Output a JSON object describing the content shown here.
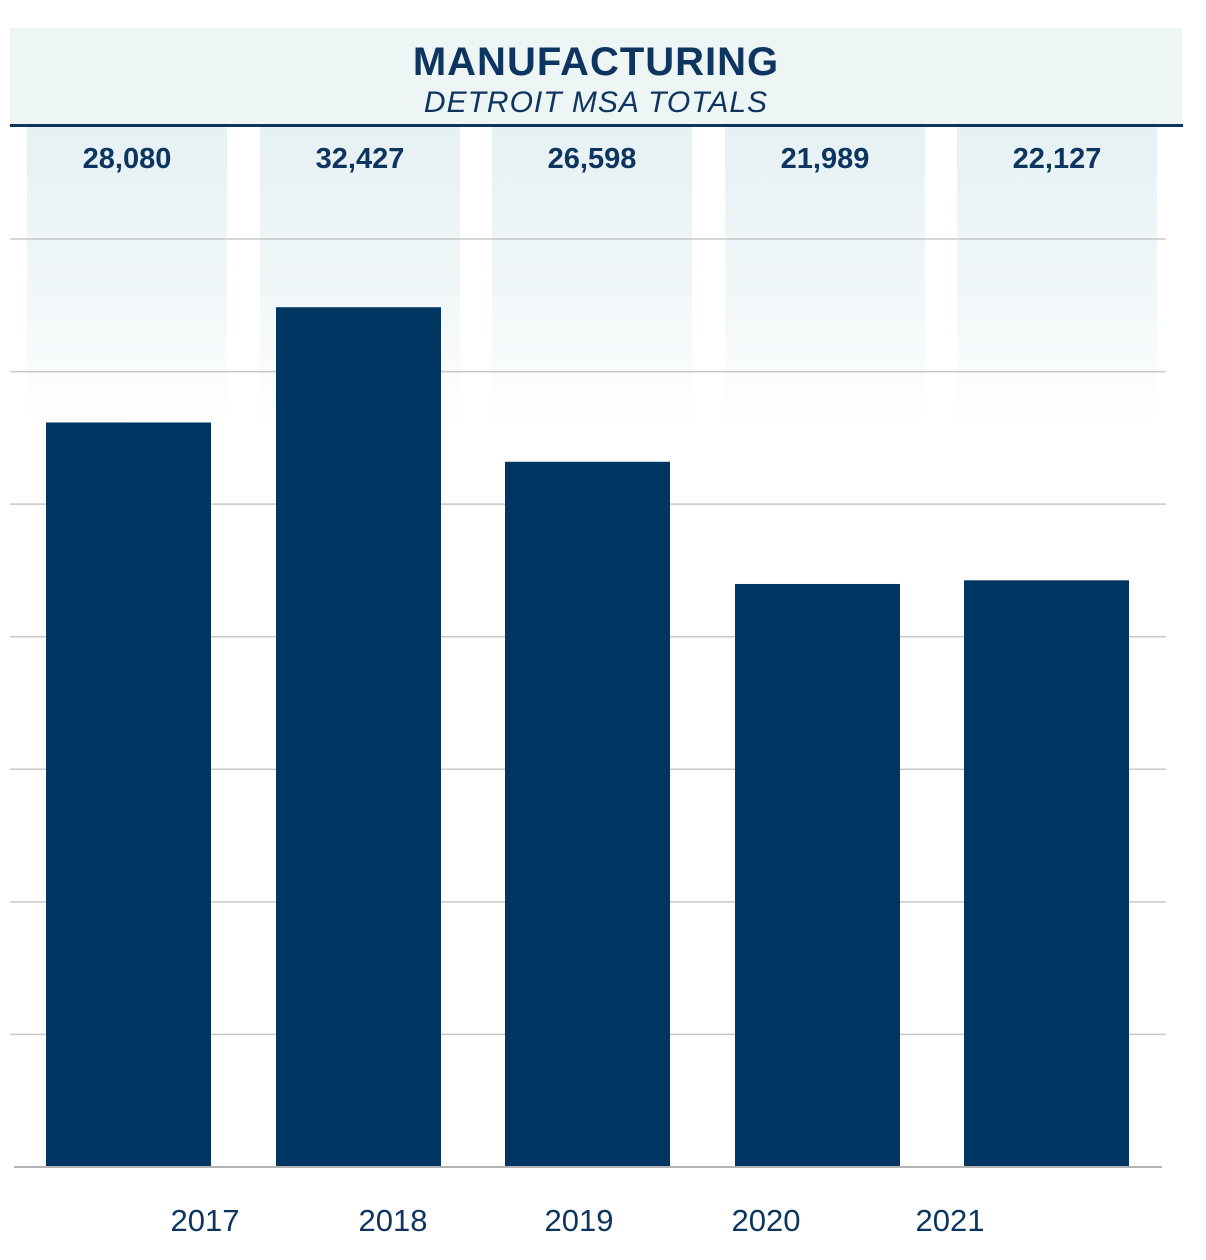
{
  "header": {
    "title": "MANUFACTURING",
    "subtitle": "DETROIT MSA TOTALS"
  },
  "colors": {
    "bar": "#003662",
    "title": "#0d3560",
    "header_bg": "#eef5f5",
    "grid": "#c8c8c8"
  },
  "value_labels": [
    "28,080",
    "32,427",
    "26,598",
    "21,989",
    "22,127"
  ],
  "year_labels": [
    "2017",
    "2018",
    "2019",
    "2020",
    "2021"
  ],
  "chart_data": {
    "type": "bar",
    "title": "MANUFACTURING",
    "subtitle": "DETROIT MSA TOTALS",
    "categories": [
      "2017",
      "2018",
      "2019",
      "2020",
      "2021"
    ],
    "values": [
      28080,
      32427,
      26598,
      21989,
      22127
    ],
    "xlabel": "",
    "ylabel": "",
    "ylim": [
      0,
      35000
    ],
    "grid": true,
    "legend": "none"
  }
}
